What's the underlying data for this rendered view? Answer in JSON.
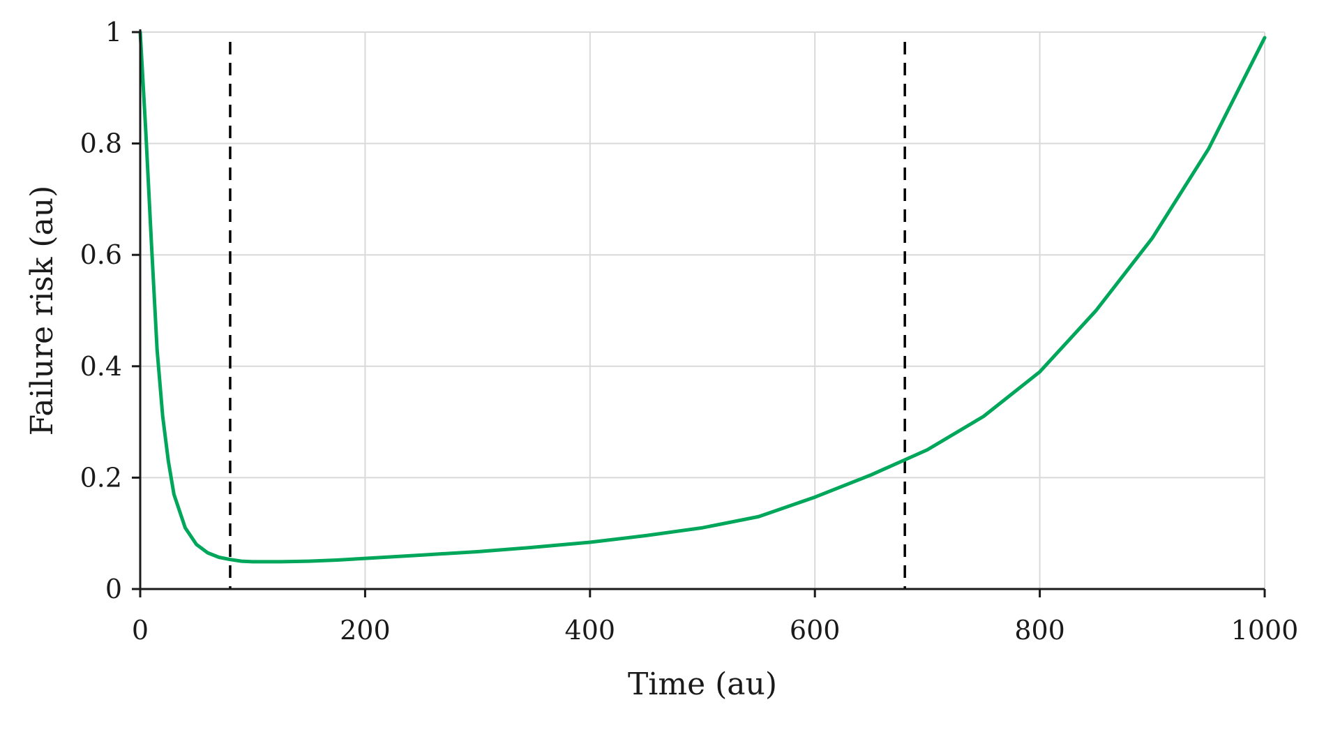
{
  "chart_data": {
    "type": "line",
    "title": "",
    "xlabel": "Time (au)",
    "ylabel": "Failure risk (au)",
    "xlim": [
      0,
      1000
    ],
    "ylim": [
      0,
      1
    ],
    "x_ticks": [
      0,
      200,
      400,
      600,
      800,
      1000
    ],
    "y_ticks": [
      0,
      0.2,
      0.4,
      0.6,
      0.8,
      1
    ],
    "x_tick_labels": [
      "0",
      "200",
      "400",
      "600",
      "800",
      "1000"
    ],
    "y_tick_labels": [
      "0",
      "0.2",
      "0.4",
      "0.6",
      "0.8",
      "1"
    ],
    "grid": true,
    "series": [
      {
        "color": "#00a65a",
        "x": [
          0,
          5,
          10,
          15,
          20,
          25,
          30,
          40,
          50,
          60,
          70,
          80,
          90,
          100,
          125,
          150,
          175,
          200,
          250,
          300,
          350,
          400,
          450,
          500,
          550,
          600,
          650,
          680,
          700,
          750,
          800,
          850,
          900,
          950,
          1000
        ],
        "y": [
          1.0,
          0.82,
          0.62,
          0.43,
          0.31,
          0.23,
          0.17,
          0.11,
          0.08,
          0.065,
          0.057,
          0.053,
          0.05,
          0.049,
          0.049,
          0.05,
          0.052,
          0.055,
          0.061,
          0.067,
          0.075,
          0.084,
          0.096,
          0.11,
          0.13,
          0.165,
          0.205,
          0.232,
          0.25,
          0.31,
          0.39,
          0.5,
          0.63,
          0.79,
          0.99
        ]
      }
    ],
    "vertical_markers": [
      {
        "x": 80,
        "style": "dashed",
        "color": "#000000"
      },
      {
        "x": 680,
        "style": "dashed",
        "color": "#000000"
      }
    ]
  }
}
